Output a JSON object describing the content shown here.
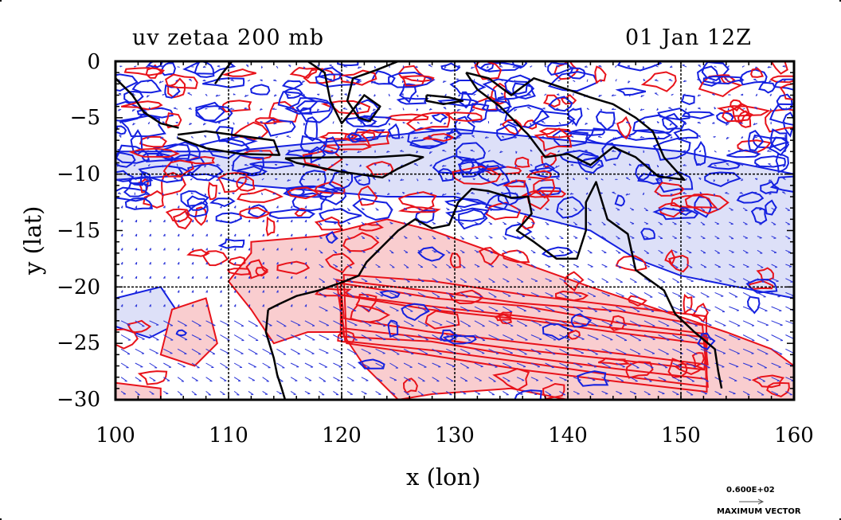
{
  "title_left": "uv zetaa 200 mb",
  "title_right": "01 Jan 12Z",
  "colors": {
    "positive_contour": "#e8121a",
    "negative_contour": "#1420e0",
    "positive_fill": "#f9cdcf",
    "negative_fill": "#dde0f8",
    "vector": "#2a34d8",
    "coast": "#000000"
  },
  "chart_data": {
    "type": "map",
    "xlabel": "x (lon)",
    "ylabel": "y (lat)",
    "xlim": [
      100,
      160
    ],
    "ylim": [
      -30,
      0
    ],
    "xticks": [
      "100",
      "110",
      "120",
      "130",
      "140",
      "150",
      "160"
    ],
    "yticks": [
      "0",
      "−5",
      "−10",
      "−15",
      "−20",
      "−25",
      "−30"
    ],
    "grid": {
      "lon": [
        110,
        120,
        130,
        140,
        150
      ],
      "lat": [
        -10,
        -20
      ]
    },
    "max_vector_value": "0.600E+02",
    "max_vector_label": "MAXIMUM VECTOR",
    "positive_regions_lonlat": [
      [
        [
          112,
          -16
        ],
        [
          118,
          -15.5
        ],
        [
          124,
          -14
        ],
        [
          128,
          -15
        ],
        [
          135,
          -17.5
        ],
        [
          142,
          -20
        ],
        [
          148,
          -22
        ],
        [
          154,
          -24
        ],
        [
          158,
          -25.5
        ],
        [
          160,
          -27
        ],
        [
          160,
          -30
        ],
        [
          150,
          -30
        ],
        [
          140,
          -30
        ],
        [
          135,
          -29
        ],
        [
          128,
          -29.5
        ],
        [
          125,
          -30
        ],
        [
          122,
          -27
        ],
        [
          120,
          -24
        ],
        [
          117,
          -24
        ],
        [
          114,
          -25
        ],
        [
          112,
          -22
        ],
        [
          110,
          -19.5
        ],
        [
          112,
          -17
        ]
      ],
      [
        [
          105,
          -22
        ],
        [
          108,
          -21
        ],
        [
          109,
          -25
        ],
        [
          107,
          -27
        ],
        [
          104,
          -26
        ]
      ],
      [
        [
          100,
          -28.5
        ],
        [
          104,
          -29
        ],
        [
          104,
          -30
        ],
        [
          100,
          -30
        ]
      ]
    ],
    "negative_regions_lonlat": [
      [
        [
          100,
          -10.5
        ],
        [
          108,
          -10
        ],
        [
          112,
          -11
        ],
        [
          118,
          -11.5
        ],
        [
          124,
          -12
        ],
        [
          130,
          -12
        ],
        [
          136,
          -13.5
        ],
        [
          142,
          -15
        ],
        [
          146,
          -17.5
        ],
        [
          150,
          -19
        ],
        [
          155,
          -20
        ],
        [
          160,
          -21
        ],
        [
          160,
          -10
        ],
        [
          150,
          -8
        ],
        [
          140,
          -7
        ],
        [
          130,
          -6
        ],
        [
          120,
          -7
        ],
        [
          110,
          -8
        ],
        [
          100,
          -8
        ]
      ],
      [
        [
          100,
          -21
        ],
        [
          104,
          -20
        ],
        [
          106,
          -23
        ],
        [
          103,
          -24.5
        ],
        [
          100,
          -23.5
        ]
      ]
    ],
    "coastlines_lonlat": [
      [
        [
          113.5,
          -22
        ],
        [
          114.5,
          -21.5
        ],
        [
          116,
          -20.8
        ],
        [
          118,
          -20.3
        ],
        [
          120,
          -19.6
        ],
        [
          121.5,
          -19
        ],
        [
          122.2,
          -17.8
        ],
        [
          123.5,
          -16.5
        ],
        [
          125,
          -15
        ],
        [
          126.5,
          -14
        ],
        [
          128,
          -14.8
        ],
        [
          129.5,
          -14.5
        ],
        [
          130.3,
          -12.5
        ],
        [
          131.5,
          -11.3
        ],
        [
          133,
          -11.5
        ],
        [
          135,
          -12.1
        ],
        [
          136.5,
          -12
        ],
        [
          136.8,
          -13.5
        ],
        [
          135.5,
          -15
        ],
        [
          137,
          -16
        ],
        [
          139,
          -17.5
        ],
        [
          140.8,
          -17.5
        ],
        [
          141.6,
          -15
        ],
        [
          141.6,
          -12.5
        ],
        [
          142.5,
          -10.7
        ],
        [
          143.5,
          -14
        ],
        [
          145.3,
          -15.3
        ],
        [
          146,
          -18.5
        ],
        [
          148.5,
          -20.3
        ],
        [
          149.5,
          -22.4
        ],
        [
          151.2,
          -24
        ],
        [
          153,
          -25.5
        ],
        [
          153.3,
          -27.5
        ],
        [
          153.6,
          -29
        ]
      ],
      [
        [
          113.5,
          -22
        ],
        [
          113.3,
          -24
        ],
        [
          114,
          -26.3
        ],
        [
          114.3,
          -27.8
        ],
        [
          114.7,
          -29
        ],
        [
          115,
          -30
        ]
      ],
      [
        [
          131,
          -1
        ],
        [
          133,
          -1.5
        ],
        [
          135,
          -3
        ],
        [
          137,
          -1.5
        ],
        [
          140,
          -2.5
        ],
        [
          142,
          -3.2
        ],
        [
          144,
          -3.8
        ],
        [
          146,
          -5
        ],
        [
          147.5,
          -6.2
        ],
        [
          148.5,
          -8.5
        ],
        [
          150.3,
          -10.5
        ],
        [
          148,
          -10.2
        ],
        [
          146,
          -8.5
        ],
        [
          144,
          -7.6
        ],
        [
          142,
          -9.2
        ],
        [
          140,
          -8.2
        ],
        [
          138,
          -8.5
        ],
        [
          136.5,
          -6.5
        ],
        [
          134,
          -4
        ],
        [
          132,
          -2.5
        ],
        [
          131,
          -1
        ]
      ],
      [
        [
          105.5,
          -6.5
        ],
        [
          108,
          -6.2
        ],
        [
          111,
          -6.6
        ],
        [
          114,
          -7
        ],
        [
          114.5,
          -8.3
        ],
        [
          111,
          -8.2
        ],
        [
          108,
          -7.7
        ],
        [
          105.5,
          -6.8
        ]
      ],
      [
        [
          115,
          -8.6
        ],
        [
          119.5,
          -8.5
        ],
        [
          123,
          -8.5
        ],
        [
          126,
          -8.3
        ],
        [
          127.2,
          -8.5
        ],
        [
          125,
          -9.5
        ],
        [
          123.6,
          -10.3
        ],
        [
          120,
          -9.8
        ],
        [
          116,
          -9
        ],
        [
          115,
          -8.6
        ]
      ],
      [
        [
          117,
          0
        ],
        [
          118.5,
          -1
        ],
        [
          119,
          -3.5
        ],
        [
          120,
          -5.5
        ],
        [
          121,
          -4.3
        ],
        [
          122,
          -3
        ],
        [
          123.4,
          -4
        ],
        [
          122.5,
          -5.3
        ],
        [
          121.5,
          -5
        ],
        [
          120.5,
          -3.5
        ],
        [
          121,
          -1.5
        ],
        [
          123,
          -0.8
        ],
        [
          125,
          0
        ]
      ],
      [
        [
          127.5,
          -3
        ],
        [
          129.5,
          -3.2
        ],
        [
          130.7,
          -3.5
        ],
        [
          129,
          -3.8
        ],
        [
          127.5,
          -3.5
        ],
        [
          127.5,
          -3
        ]
      ],
      [
        [
          100,
          -1.5
        ],
        [
          101.5,
          -3
        ],
        [
          102.5,
          -4.5
        ],
        [
          104,
          -5.5
        ],
        [
          105.6,
          -5.9
        ]
      ],
      [
        [
          108.8,
          -2
        ],
        [
          109.5,
          -1
        ],
        [
          110.3,
          0
        ]
      ]
    ]
  }
}
